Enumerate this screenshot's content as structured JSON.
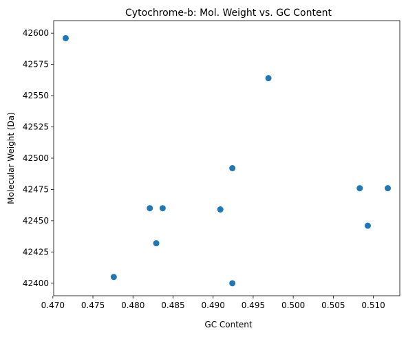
{
  "chart_data": {
    "type": "scatter",
    "title": "Cytochrome-b: Mol. Weight vs. GC Content",
    "xlabel": "GC Content",
    "ylabel": "Molecular Weight (Da)",
    "xlim": [
      0.4701,
      0.5133
    ],
    "ylim": [
      42390,
      42610
    ],
    "xticks": [
      0.47,
      0.475,
      0.48,
      0.485,
      0.49,
      0.495,
      0.5,
      0.505,
      0.51
    ],
    "xtick_labels": [
      "0.470",
      "0.475",
      "0.480",
      "0.485",
      "0.490",
      "0.495",
      "0.500",
      "0.505",
      "0.510"
    ],
    "yticks": [
      42400,
      42425,
      42450,
      42475,
      42500,
      42525,
      42550,
      42575,
      42600
    ],
    "ytick_labels": [
      "42400",
      "42425",
      "42450",
      "42475",
      "42500",
      "42525",
      "42550",
      "42575",
      "42600"
    ],
    "grid": false,
    "point_color": "#1f77b4",
    "points": [
      {
        "x": 0.4716,
        "y": 42596
      },
      {
        "x": 0.4776,
        "y": 42405
      },
      {
        "x": 0.4821,
        "y": 42460
      },
      {
        "x": 0.4829,
        "y": 42432
      },
      {
        "x": 0.4837,
        "y": 42460
      },
      {
        "x": 0.4909,
        "y": 42459
      },
      {
        "x": 0.4924,
        "y": 42492
      },
      {
        "x": 0.4924,
        "y": 42400
      },
      {
        "x": 0.4969,
        "y": 42564
      },
      {
        "x": 0.5083,
        "y": 42476
      },
      {
        "x": 0.5093,
        "y": 42446
      },
      {
        "x": 0.5118,
        "y": 42476
      }
    ]
  }
}
